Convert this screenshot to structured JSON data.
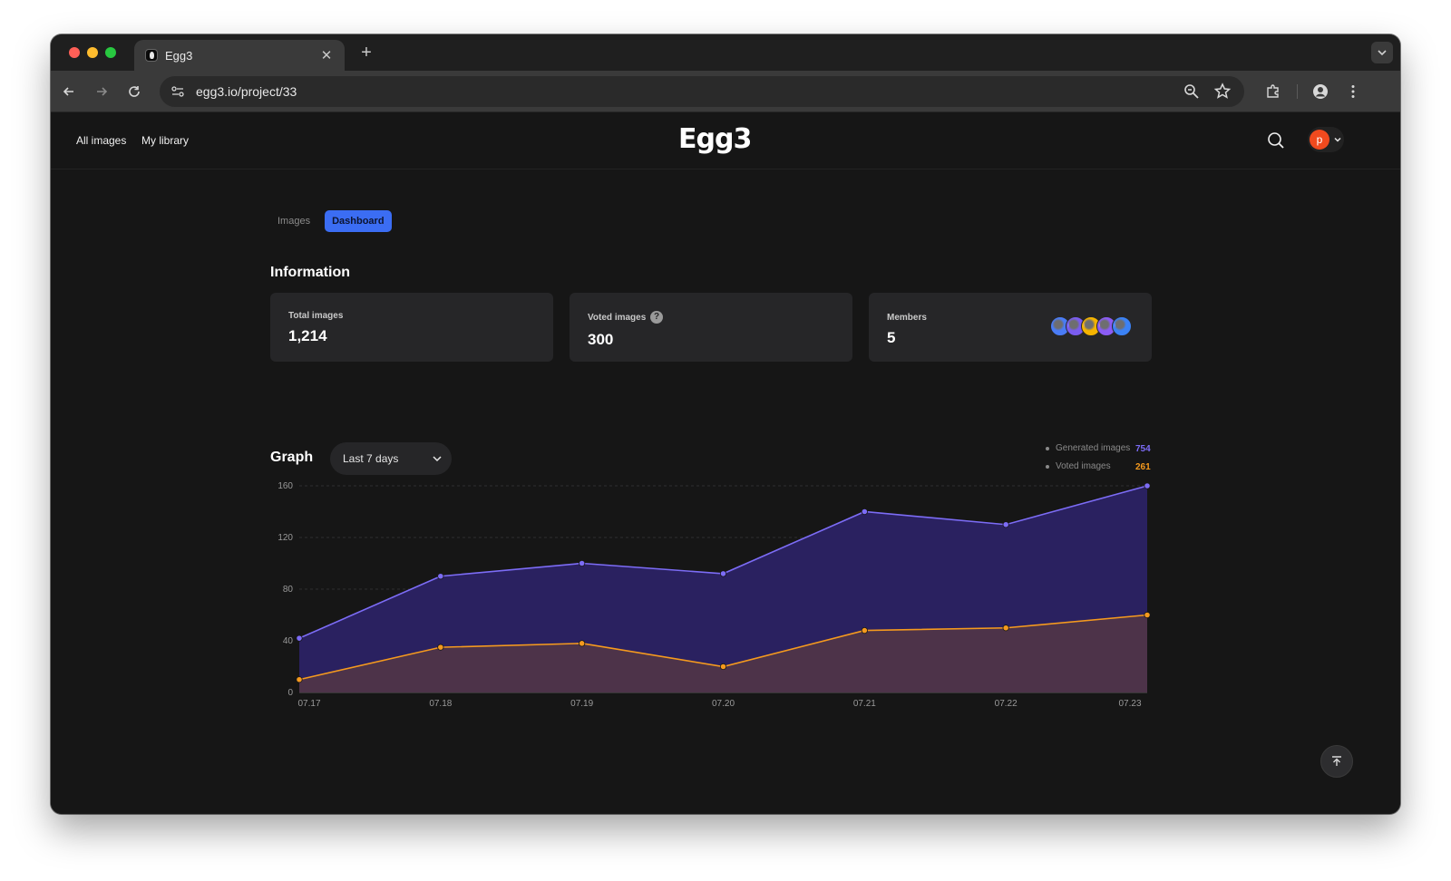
{
  "browser": {
    "tab_title": "Egg3",
    "url": "egg3.io/project/33"
  },
  "header": {
    "nav": [
      "All images",
      "My library"
    ],
    "logo": "Egg3",
    "avatar_letter": "p"
  },
  "tabs": [
    {
      "label": "Images",
      "active": false
    },
    {
      "label": "Dashboard",
      "active": true
    }
  ],
  "information": {
    "title": "Information",
    "cards": [
      {
        "label": "Total images",
        "value": "1,214"
      },
      {
        "label": "Voted images",
        "value": "300"
      },
      {
        "label": "Members",
        "value": "5"
      }
    ],
    "member_colors": [
      "#4a7cf7",
      "#7a5cf0",
      "#f5b400",
      "#8b5cf6",
      "#3b82f6"
    ]
  },
  "graph": {
    "title": "Graph",
    "range": "Last 7 days"
  },
  "legend": [
    {
      "label": "Generated images",
      "total": "754",
      "color": "#7c6cf6"
    },
    {
      "label": "Voted images",
      "total": "261",
      "color": "#f59a1e"
    }
  ],
  "chart_data": {
    "type": "area",
    "categories": [
      "07.17",
      "07.18",
      "07.19",
      "07.20",
      "07.21",
      "07.22",
      "07.23"
    ],
    "series": [
      {
        "name": "Generated images",
        "values": [
          42,
          90,
          100,
          92,
          140,
          130,
          160
        ],
        "color": "#7c6cf6"
      },
      {
        "name": "Voted images",
        "values": [
          10,
          35,
          38,
          20,
          48,
          50,
          60
        ],
        "color": "#f59a1e"
      }
    ],
    "yticks": [
      0,
      40,
      80,
      120,
      160
    ],
    "ylim": [
      0,
      160
    ],
    "grid": true,
    "legend_position": "top-right"
  }
}
